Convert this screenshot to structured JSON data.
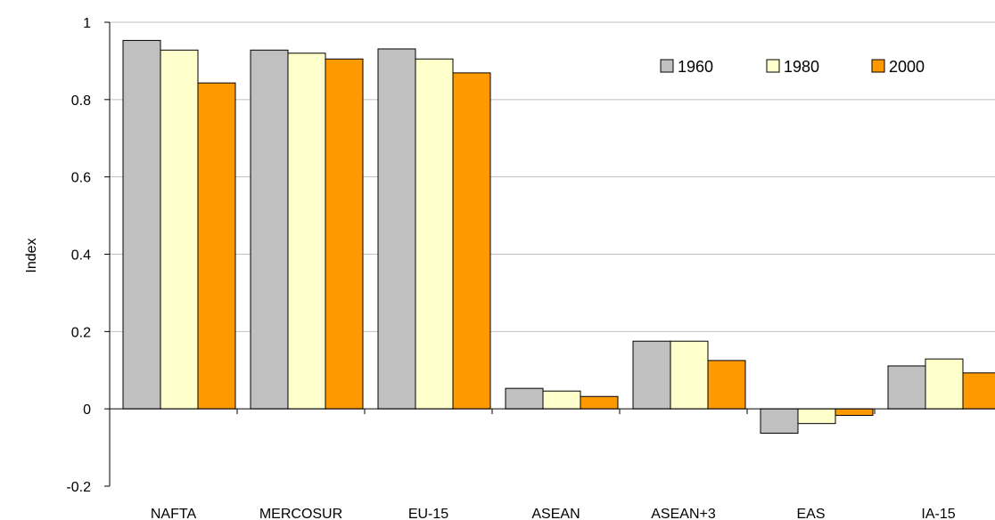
{
  "chart_data": {
    "type": "bar",
    "title": "",
    "xlabel": "",
    "ylabel": "Index",
    "ylim": [
      -0.2,
      1
    ],
    "yticks": [
      "1",
      "0.8",
      "0.6",
      "0.4",
      "0.2",
      "0",
      "-0.2"
    ],
    "grid": true,
    "legend_position": "top-right",
    "categories": [
      "NAFTA",
      "MERCOSUR",
      "EU-15",
      "ASEAN",
      "ASEAN+3",
      "EAS",
      "IA-15"
    ],
    "series": [
      {
        "name": "1960",
        "color": "#C0C0C0",
        "values": [
          0.953,
          0.928,
          0.931,
          0.053,
          0.175,
          -0.063,
          0.111
        ]
      },
      {
        "name": "1980",
        "color": "#FFFFCC",
        "values": [
          0.928,
          0.92,
          0.905,
          0.046,
          0.175,
          -0.038,
          0.129
        ]
      },
      {
        "name": "2000",
        "color": "#FF9900",
        "values": [
          0.843,
          0.905,
          0.869,
          0.032,
          0.125,
          -0.017,
          0.093
        ]
      }
    ]
  }
}
